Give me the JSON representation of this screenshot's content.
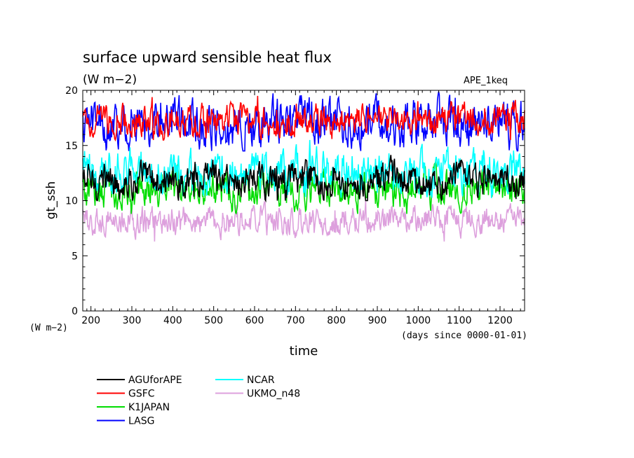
{
  "chart_data": {
    "type": "line",
    "title": "surface upward sensible heat flux",
    "units": "(W m−2)",
    "experiment": "APE_1keq",
    "ylabel": "gt_ssh",
    "ylabel_units": "(W m−2)",
    "xlabel": "time",
    "xlabel_units": "(days since 0000-01-01)",
    "xlim": [
      180,
      1260
    ],
    "ylim": [
      0,
      20
    ],
    "xticks": [
      "200",
      "300",
      "400",
      "500",
      "600",
      "700",
      "800",
      "900",
      "1000",
      "1100",
      "1200"
    ],
    "yticks": [
      "0",
      "5",
      "10",
      "15",
      "20"
    ],
    "series": [
      {
        "name": "AGUforAPE",
        "color": "#000000",
        "mean": 11.8,
        "range": [
          10.0,
          14.5
        ]
      },
      {
        "name": "GSFC",
        "color": "#ff0000",
        "mean": 17.2,
        "range": [
          15.5,
          19.5
        ]
      },
      {
        "name": "K1JAPAN",
        "color": "#00dd00",
        "mean": 11.0,
        "range": [
          8.8,
          13.5
        ]
      },
      {
        "name": "LASG",
        "color": "#0000ff",
        "mean": 17.0,
        "range": [
          14.5,
          20.5
        ]
      },
      {
        "name": "NCAR",
        "color": "#00ffff",
        "mean": 12.6,
        "range": [
          10.0,
          15.5
        ]
      },
      {
        "name": "UKMO_n48",
        "color": "#dda0dd",
        "mean": 8.2,
        "range": [
          6.3,
          10.0
        ]
      }
    ]
  }
}
